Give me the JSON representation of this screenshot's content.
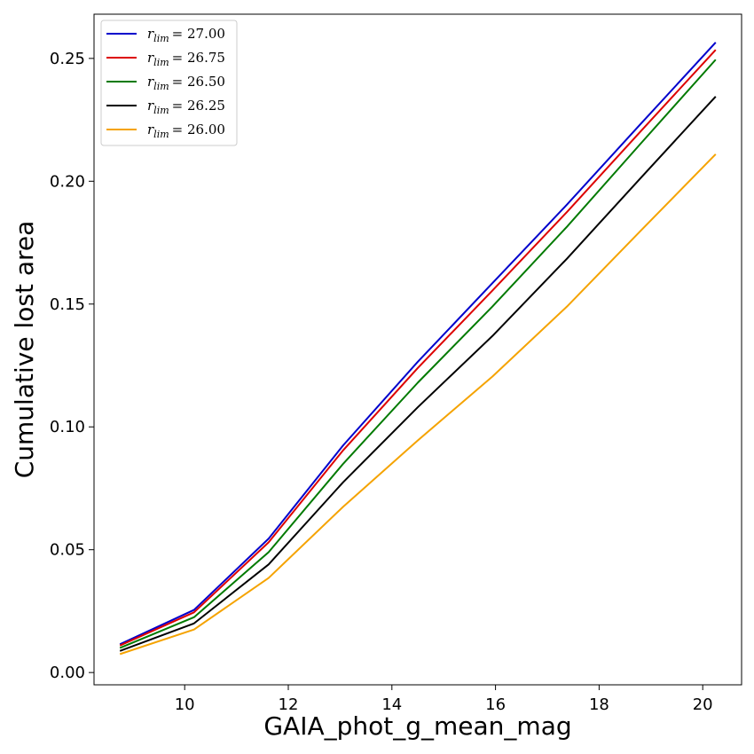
{
  "chart_data": {
    "type": "line",
    "title": "",
    "xlabel": "GAIA_phot_g_mean_mag",
    "ylabel": "Cumulative lost area",
    "xlim": [
      8.25,
      20.75
    ],
    "ylim": [
      -0.005,
      0.268
    ],
    "xticks": [
      10,
      12,
      14,
      16,
      18,
      20
    ],
    "xtick_labels": [
      "10",
      "12",
      "14",
      "16",
      "18",
      "20"
    ],
    "yticks": [
      0.0,
      0.05,
      0.1,
      0.15,
      0.2,
      0.25
    ],
    "ytick_labels": [
      "0.00",
      "0.05",
      "0.10",
      "0.15",
      "0.20",
      "0.25"
    ],
    "grid": false,
    "legend_position": "top-left",
    "x": [
      8.75,
      10.18,
      11.62,
      13.06,
      14.5,
      15.94,
      17.38,
      18.81,
      20.25
    ],
    "series": [
      {
        "name": "r_lim = 27.00",
        "legend_sub": "lim",
        "legend_value": "= 27.00",
        "color": "#0000cc",
        "values": [
          0.0115,
          0.0255,
          0.0545,
          0.0925,
          0.1265,
          0.1585,
          0.1905,
          0.2235,
          0.2565
        ]
      },
      {
        "name": "r_lim = 26.75",
        "legend_sub": "lim",
        "legend_value": "= 26.75",
        "color": "#dd0000",
        "values": [
          0.011,
          0.0245,
          0.053,
          0.0905,
          0.124,
          0.1555,
          0.1875,
          0.2205,
          0.2535
        ]
      },
      {
        "name": "r_lim = 26.50",
        "legend_sub": "lim",
        "legend_value": "= 26.50",
        "color": "#007a00",
        "values": [
          0.01,
          0.0225,
          0.049,
          0.085,
          0.118,
          0.149,
          0.1815,
          0.2155,
          0.2495
        ]
      },
      {
        "name": "r_lim = 26.25",
        "legend_sub": "lim",
        "legend_value": "= 26.25",
        "color": "#000000",
        "values": [
          0.0088,
          0.02,
          0.044,
          0.0775,
          0.108,
          0.137,
          0.1685,
          0.2015,
          0.2345
        ]
      },
      {
        "name": "r_lim = 26.00",
        "legend_sub": "lim",
        "legend_value": "= 26.00",
        "color": "#f5a300",
        "values": [
          0.0075,
          0.0175,
          0.0385,
          0.0675,
          0.0945,
          0.1205,
          0.149,
          0.18,
          0.211
        ]
      }
    ]
  }
}
